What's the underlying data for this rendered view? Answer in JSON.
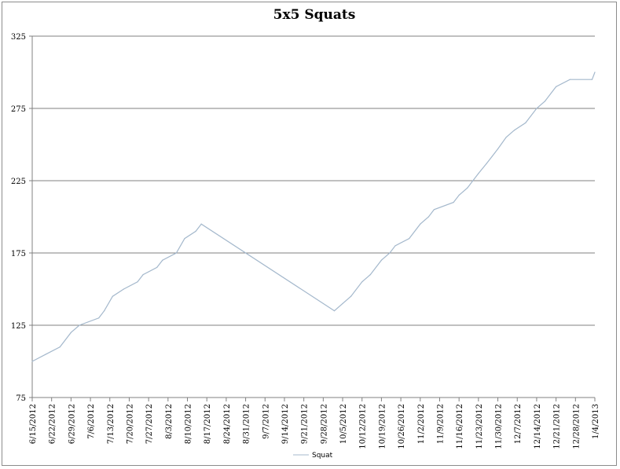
{
  "chart_data": {
    "type": "line",
    "title": "5x5 Squats",
    "xlabel": "",
    "ylabel": "",
    "ylim": [
      75,
      325
    ],
    "yticks": [
      75,
      125,
      175,
      225,
      275,
      325
    ],
    "xlim": [
      "2012-06-15",
      "2013-01-04"
    ],
    "x_tick_labels": [
      "6/15/2012",
      "6/22/2012",
      "6/29/2012",
      "7/6/2012",
      "7/13/2012",
      "7/20/2012",
      "7/27/2012",
      "8/3/2012",
      "8/10/2012",
      "8/17/2012",
      "8/24/2012",
      "8/31/2012",
      "9/7/2012",
      "9/14/2012",
      "9/21/2012",
      "9/28/2012",
      "10/5/2012",
      "10/12/2012",
      "10/19/2012",
      "10/26/2012",
      "11/2/2012",
      "11/9/2012",
      "11/16/2012",
      "11/23/2012",
      "11/30/2012",
      "12/7/2012",
      "12/14/2012",
      "12/21/2012",
      "12/28/2012",
      "1/4/2013"
    ],
    "grid": true,
    "legend_position": "bottom",
    "series": [
      {
        "name": "Squat",
        "color": "#a4b8cc",
        "points": [
          {
            "x": "2012-06-15",
            "y": 100
          },
          {
            "x": "2012-06-20",
            "y": 105
          },
          {
            "x": "2012-06-25",
            "y": 110
          },
          {
            "x": "2012-06-29",
            "y": 120
          },
          {
            "x": "2012-07-02",
            "y": 125
          },
          {
            "x": "2012-07-09",
            "y": 130
          },
          {
            "x": "2012-07-11",
            "y": 135
          },
          {
            "x": "2012-07-14",
            "y": 145
          },
          {
            "x": "2012-07-18",
            "y": 150
          },
          {
            "x": "2012-07-23",
            "y": 155
          },
          {
            "x": "2012-07-25",
            "y": 160
          },
          {
            "x": "2012-07-30",
            "y": 165
          },
          {
            "x": "2012-08-01",
            "y": 170
          },
          {
            "x": "2012-08-06",
            "y": 175
          },
          {
            "x": "2012-08-09",
            "y": 185
          },
          {
            "x": "2012-08-13",
            "y": 190
          },
          {
            "x": "2012-08-15",
            "y": 195
          },
          {
            "x": "2012-10-02",
            "y": 135
          },
          {
            "x": "2012-10-05",
            "y": 140
          },
          {
            "x": "2012-10-08",
            "y": 145
          },
          {
            "x": "2012-10-12",
            "y": 155
          },
          {
            "x": "2012-10-15",
            "y": 160
          },
          {
            "x": "2012-10-19",
            "y": 170
          },
          {
            "x": "2012-10-22",
            "y": 175
          },
          {
            "x": "2012-10-24",
            "y": 180
          },
          {
            "x": "2012-10-29",
            "y": 185
          },
          {
            "x": "2012-11-02",
            "y": 195
          },
          {
            "x": "2012-11-05",
            "y": 200
          },
          {
            "x": "2012-11-07",
            "y": 205
          },
          {
            "x": "2012-11-14",
            "y": 210
          },
          {
            "x": "2012-11-16",
            "y": 215
          },
          {
            "x": "2012-11-19",
            "y": 220
          },
          {
            "x": "2012-11-21",
            "y": 225
          },
          {
            "x": "2012-11-23",
            "y": 230
          },
          {
            "x": "2012-11-26",
            "y": 237
          },
          {
            "x": "2012-11-28",
            "y": 242
          },
          {
            "x": "2012-11-30",
            "y": 247
          },
          {
            "x": "2012-12-03",
            "y": 255
          },
          {
            "x": "2012-12-06",
            "y": 260
          },
          {
            "x": "2012-12-10",
            "y": 265
          },
          {
            "x": "2012-12-14",
            "y": 275
          },
          {
            "x": "2012-12-17",
            "y": 280
          },
          {
            "x": "2012-12-21",
            "y": 290
          },
          {
            "x": "2012-12-26",
            "y": 295
          },
          {
            "x": "2013-01-03",
            "y": 295
          },
          {
            "x": "2013-01-04",
            "y": 300
          }
        ]
      }
    ]
  }
}
